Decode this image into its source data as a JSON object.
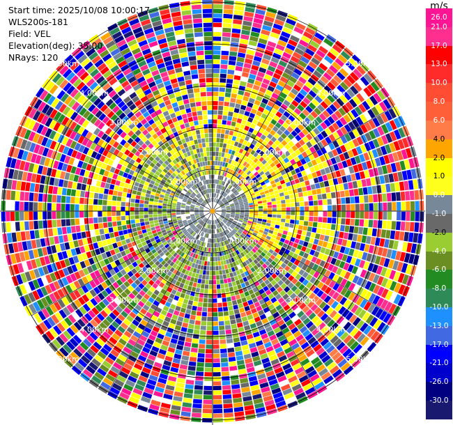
{
  "info": {
    "start_time": "Start time: 2025/10/08 10:00:17",
    "station": "WLS200s-181",
    "field": "Field: VEL",
    "elevation": "Elevation(deg): 35.00",
    "nrays": "NRays: 120"
  },
  "chart_data": {
    "type": "polar_ppi",
    "field": "VEL",
    "n_rays": 120,
    "elevation_deg": 35.0,
    "range_rings_km": [
      "1.00km",
      "2.00km",
      "3.00km",
      "4.00km",
      "5.00km"
    ],
    "colorbar": {
      "unit": "m/s",
      "bins": [
        {
          "label": "26.0",
          "color": "#ff1493"
        },
        {
          "label": "21.0",
          "color": "#ff2f8f"
        },
        {
          "label": "17.0",
          "color": "#ff0000"
        },
        {
          "label": "13.0",
          "color": "#ff2b2b"
        },
        {
          "label": "10.0",
          "color": "#ff4d33"
        },
        {
          "label": "8.0",
          "color": "#ff5f38"
        },
        {
          "label": "6.0",
          "color": "#ff7b48"
        },
        {
          "label": "4.0",
          "color": "#ffa500"
        },
        {
          "label": "2.0",
          "color": "#ffff00"
        },
        {
          "label": "1.0",
          "color": "#ffff1e"
        },
        {
          "label": "0.0",
          "color": "#778899"
        },
        {
          "label": "-1.0",
          "color": "#696969"
        },
        {
          "label": "-2.0",
          "color": "#9acd32"
        },
        {
          "label": "-4.0",
          "color": "#6b8e23"
        },
        {
          "label": "-6.0",
          "color": "#228b22"
        },
        {
          "label": "-8.0",
          "color": "#2e8b57"
        },
        {
          "label": "-10.0",
          "color": "#1e90ff"
        },
        {
          "label": "-13.0",
          "color": "#4169e1"
        },
        {
          "label": "-17.0",
          "color": "#0000ff"
        },
        {
          "label": "-21.0",
          "color": "#0000cd"
        },
        {
          "label": "-26.0",
          "color": "#000080"
        },
        {
          "label": "-30.0",
          "color": "#191970"
        }
      ]
    }
  }
}
